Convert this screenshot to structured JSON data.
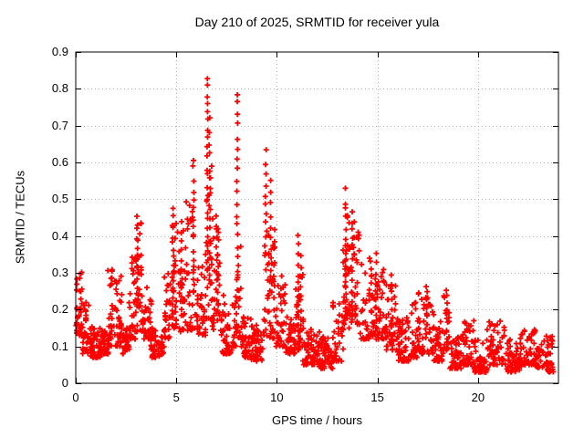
{
  "chart": {
    "title": "Day 210 of 2025, SRMTID for receiver yula",
    "xlabel": "GPS time / hours",
    "ylabel": "SRMTID / TECUs"
  },
  "chart_data": {
    "type": "scatter",
    "marker": "plus",
    "marker_color": "#ff0000",
    "grid": true,
    "grid_color": "#b3b3b3",
    "border_color": "#000000",
    "legend": "none",
    "xlim": [
      0,
      24
    ],
    "ylim": [
      0,
      0.9
    ],
    "x_ticks": [
      0,
      5,
      10,
      15,
      20
    ],
    "x_tick_labels": [
      "0",
      "5",
      "10",
      "15",
      "20"
    ],
    "y_ticks": [
      0,
      0.1,
      0.2,
      0.3,
      0.4,
      0.5,
      0.6,
      0.7,
      0.8,
      0.9
    ],
    "y_tick_labels": [
      "0",
      "0.1",
      "0.2",
      "0.3",
      "0.4",
      "0.5",
      "0.6",
      "0.7",
      "0.8",
      "0.9"
    ],
    "series_name": "SRMTID",
    "density_bands_hours_lo_hi_n": [
      [
        0.0,
        0.3,
        0.13,
        0.31,
        40
      ],
      [
        0.3,
        0.75,
        0.08,
        0.22,
        40
      ],
      [
        0.75,
        1.25,
        0.07,
        0.16,
        55
      ],
      [
        1.25,
        1.6,
        0.08,
        0.15,
        40
      ],
      [
        1.6,
        1.9,
        0.1,
        0.31,
        30
      ],
      [
        1.9,
        2.3,
        0.1,
        0.3,
        35
      ],
      [
        2.3,
        2.65,
        0.08,
        0.15,
        30
      ],
      [
        2.65,
        3.0,
        0.12,
        0.38,
        35
      ],
      [
        3.0,
        3.3,
        0.14,
        0.44,
        30
      ],
      [
        3.3,
        3.75,
        0.12,
        0.26,
        35
      ],
      [
        3.75,
        4.4,
        0.07,
        0.15,
        50
      ],
      [
        4.4,
        4.75,
        0.12,
        0.32,
        28
      ],
      [
        4.75,
        5.05,
        0.15,
        0.45,
        28
      ],
      [
        5.05,
        5.5,
        0.13,
        0.42,
        32
      ],
      [
        5.5,
        6.0,
        0.14,
        0.5,
        32
      ],
      [
        6.0,
        6.45,
        0.13,
        0.32,
        35
      ],
      [
        6.45,
        6.8,
        0.17,
        0.6,
        30
      ],
      [
        6.8,
        7.15,
        0.14,
        0.42,
        28
      ],
      [
        7.15,
        7.75,
        0.08,
        0.24,
        40
      ],
      [
        7.75,
        8.0,
        0.1,
        0.25,
        18
      ],
      [
        8.0,
        8.2,
        0.12,
        0.4,
        18
      ],
      [
        8.2,
        8.75,
        0.07,
        0.18,
        45
      ],
      [
        8.75,
        9.35,
        0.06,
        0.16,
        50
      ],
      [
        9.35,
        9.65,
        0.12,
        0.45,
        26
      ],
      [
        9.65,
        9.95,
        0.12,
        0.42,
        26
      ],
      [
        9.95,
        10.4,
        0.1,
        0.3,
        38
      ],
      [
        10.4,
        10.95,
        0.08,
        0.18,
        42
      ],
      [
        10.95,
        11.3,
        0.09,
        0.3,
        28
      ],
      [
        11.3,
        12.1,
        0.05,
        0.15,
        60
      ],
      [
        12.1,
        12.8,
        0.04,
        0.13,
        60
      ],
      [
        12.8,
        13.3,
        0.06,
        0.22,
        40
      ],
      [
        13.3,
        13.6,
        0.15,
        0.48,
        30
      ],
      [
        13.6,
        14.15,
        0.16,
        0.44,
        42
      ],
      [
        14.15,
        14.8,
        0.12,
        0.34,
        45
      ],
      [
        14.8,
        15.4,
        0.12,
        0.32,
        45
      ],
      [
        15.4,
        16.0,
        0.09,
        0.28,
        40
      ],
      [
        16.0,
        16.6,
        0.06,
        0.18,
        48
      ],
      [
        16.6,
        17.0,
        0.07,
        0.22,
        32
      ],
      [
        17.0,
        17.8,
        0.08,
        0.26,
        52
      ],
      [
        17.8,
        18.3,
        0.06,
        0.17,
        40
      ],
      [
        18.3,
        18.6,
        0.09,
        0.24,
        22
      ],
      [
        18.6,
        19.2,
        0.04,
        0.13,
        48
      ],
      [
        19.2,
        19.8,
        0.05,
        0.17,
        45
      ],
      [
        19.8,
        20.45,
        0.03,
        0.12,
        48
      ],
      [
        20.45,
        21.35,
        0.05,
        0.17,
        55
      ],
      [
        21.35,
        22.1,
        0.03,
        0.12,
        50
      ],
      [
        22.1,
        22.85,
        0.05,
        0.15,
        55
      ],
      [
        22.85,
        23.15,
        0.04,
        0.1,
        25
      ],
      [
        23.15,
        23.75,
        0.03,
        0.13,
        45
      ]
    ],
    "spike_columns_hour_lo_hi_n": [
      [
        3.05,
        0.2,
        0.46,
        13
      ],
      [
        4.85,
        0.24,
        0.48,
        12
      ],
      [
        5.25,
        0.2,
        0.44,
        10
      ],
      [
        5.85,
        0.28,
        0.61,
        13
      ],
      [
        6.55,
        0.32,
        0.83,
        22
      ],
      [
        6.65,
        0.28,
        0.72,
        14
      ],
      [
        7.0,
        0.22,
        0.45,
        9
      ],
      [
        8.03,
        0.22,
        0.79,
        20
      ],
      [
        9.45,
        0.4,
        0.63,
        9
      ],
      [
        9.7,
        0.28,
        0.55,
        10
      ],
      [
        11.07,
        0.1,
        0.4,
        13
      ],
      [
        11.2,
        0.12,
        0.35,
        9
      ],
      [
        13.42,
        0.18,
        0.52,
        15
      ],
      [
        13.75,
        0.2,
        0.47,
        11
      ],
      [
        14.93,
        0.16,
        0.35,
        9
      ],
      [
        15.7,
        0.12,
        0.3,
        8
      ],
      [
        17.45,
        0.14,
        0.27,
        8
      ],
      [
        18.45,
        0.1,
        0.26,
        8
      ]
    ]
  }
}
